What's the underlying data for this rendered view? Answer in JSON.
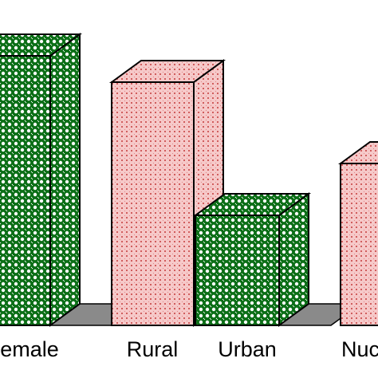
{
  "chart_data": {
    "type": "bar3d",
    "categories": [
      "emale",
      "Rural",
      "Urban",
      "Nuc"
    ],
    "values": [
      338,
      305,
      138,
      203
    ],
    "colors": [
      "#0b6e16",
      "#f3b3b3",
      "#0b6e16",
      "#f3b3b3"
    ],
    "ylim": [
      0,
      400
    ]
  }
}
